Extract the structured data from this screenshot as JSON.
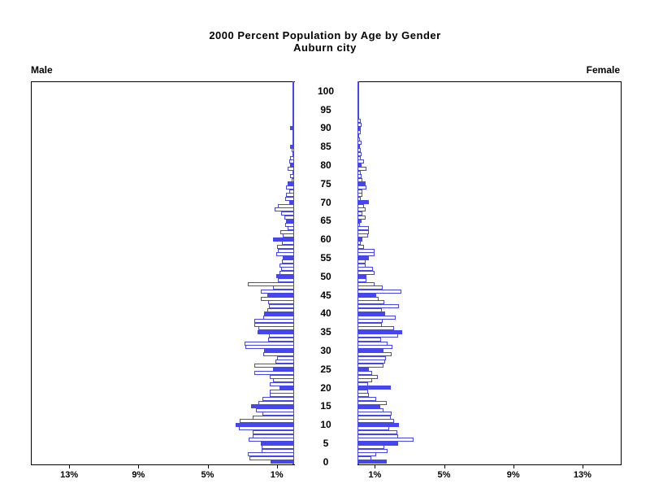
{
  "title": {
    "line1": "2000 Percent Population by Age by Gender",
    "line2": "Auburn city"
  },
  "panel_labels": {
    "male": "Male",
    "female": "Female"
  },
  "colors": {
    "bar_blue": "#4646ef",
    "axis_black": "#000000",
    "background": "#ffffff"
  },
  "chart_data": {
    "type": "bar",
    "variant": "population-pyramid",
    "title": "2000 Percent Population by Age by Gender",
    "subtitle": "Auburn city",
    "left_panel": "Male",
    "right_panel": "Female",
    "unit": "percent of population per single year of age",
    "age_axis": {
      "min": 0,
      "max": 100,
      "label_interval": 5,
      "tick_labels": [
        "0",
        "5",
        "10",
        "15",
        "20",
        "25",
        "30",
        "35",
        "40",
        "45",
        "50",
        "55",
        "60",
        "65",
        "70",
        "75",
        "80",
        "85",
        "90",
        "95",
        "100"
      ]
    },
    "pct_axis": {
      "max": 15,
      "tick_values": [
        1,
        5,
        9,
        13
      ],
      "male_tick_labels": [
        "13%",
        "9%",
        "5%",
        "1%"
      ],
      "female_tick_labels": [
        "1%",
        "5%",
        "9%",
        "13%"
      ]
    },
    "bar_style_rule": "ages divisible by 5 are solid filled blue; other ages are white with blue outline",
    "grid": false,
    "series": [
      {
        "name": "Male",
        "start_age": 0,
        "values": [
          1.35,
          2.6,
          2.7,
          1.9,
          1.9,
          1.95,
          2.65,
          2.4,
          2.4,
          3.2,
          3.4,
          3.15,
          2.4,
          1.85,
          2.2,
          2.5,
          2.05,
          1.85,
          1.4,
          1.4,
          0.85,
          1.4,
          1.2,
          1.4,
          2.3,
          1.2,
          2.3,
          1.1,
          1.0,
          1.8,
          1.75,
          2.8,
          2.85,
          1.5,
          1.45,
          2.1,
          2.05,
          2.3,
          2.3,
          1.8,
          1.75,
          1.55,
          1.45,
          1.5,
          1.95,
          1.55,
          1.95,
          1.2,
          2.7,
          0.95,
          1.05,
          0.85,
          0.75,
          0.85,
          0.7,
          0.65,
          1.05,
          0.95,
          1.0,
          0.7,
          1.2,
          0.65,
          0.8,
          0.4,
          0.5,
          0.45,
          0.55,
          0.75,
          1.15,
          0.95,
          0.3,
          0.5,
          0.45,
          0.3,
          0.45,
          0.4,
          0.15,
          0.25,
          0.1,
          0.4,
          0.25,
          0.3,
          0.25,
          0.1,
          0.15,
          0.25,
          0.1,
          0.05,
          0.05,
          0.0,
          0.25
        ]
      },
      {
        "name": "Female",
        "start_age": 0,
        "values": [
          1.7,
          0.8,
          1.1,
          1.75,
          1.55,
          2.35,
          3.25,
          2.35,
          2.3,
          1.85,
          2.4,
          2.1,
          1.9,
          1.95,
          1.5,
          1.3,
          1.7,
          1.1,
          0.65,
          0.6,
          1.9,
          0.6,
          0.85,
          1.15,
          0.85,
          0.65,
          1.5,
          1.6,
          1.65,
          1.95,
          1.5,
          2.0,
          1.75,
          1.35,
          2.35,
          2.6,
          2.1,
          1.4,
          1.45,
          2.2,
          1.6,
          1.4,
          2.4,
          1.55,
          1.2,
          1.1,
          2.55,
          1.45,
          1.0,
          0.5,
          0.5,
          1.0,
          0.9,
          0.45,
          0.45,
          0.65,
          1.0,
          1.0,
          0.35,
          0.2,
          0.3,
          0.6,
          0.65,
          0.65,
          0.15,
          0.25,
          0.45,
          0.3,
          0.45,
          0.35,
          0.65,
          0.2,
          0.3,
          0.3,
          0.5,
          0.45,
          0.3,
          0.25,
          0.2,
          0.5,
          0.25,
          0.35,
          0.2,
          0.25,
          0.2,
          0.15,
          0.25,
          0.12,
          0.05,
          0.18,
          0.2,
          0.25,
          0.2,
          0.1
        ]
      }
    ]
  }
}
